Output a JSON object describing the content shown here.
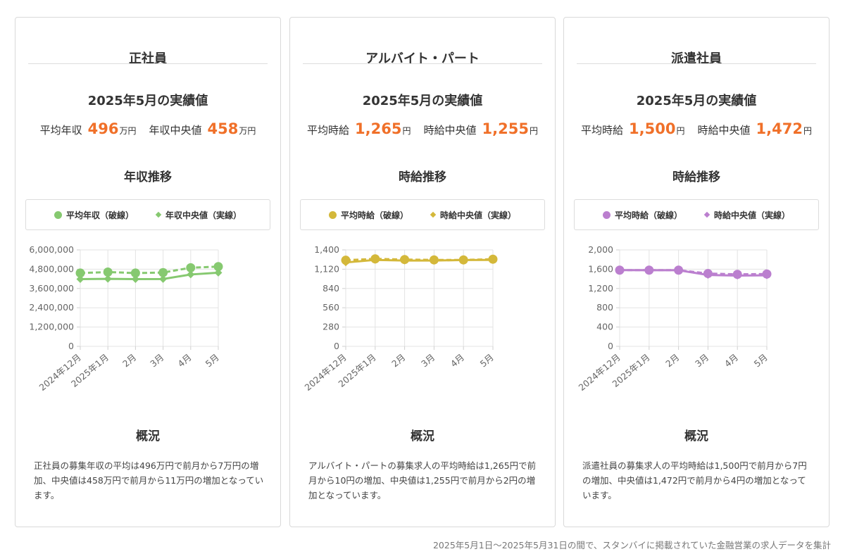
{
  "cards": [
    {
      "title": "正社員",
      "result_title": "2025年5月の実績値",
      "stat1": {
        "label": "平均年収",
        "value": "496",
        "unit": "万円"
      },
      "stat2": {
        "label": "年収中央値",
        "value": "458",
        "unit": "万円"
      },
      "trend_title": "年収推移",
      "legend": [
        "平均年収（破線）",
        "年収中央値（実線）"
      ],
      "overview_title": "概況",
      "overview_text": "正社員の募集年収の平均は496万円で前月から7万円の増加、中央値は458万円で前月から11万円の増加となっています。",
      "color": "#86c970"
    },
    {
      "title": "アルバイト・パート",
      "result_title": "2025年5月の実績値",
      "stat1": {
        "label": "平均時給",
        "value": "1,265",
        "unit": "円"
      },
      "stat2": {
        "label": "時給中央値",
        "value": "1,255",
        "unit": "円"
      },
      "trend_title": "時給推移",
      "legend": [
        "平均時給（破線）",
        "時給中央値（実線）"
      ],
      "overview_title": "概況",
      "overview_text": "アルバイト・パートの募集求人の平均時給は1,265円で前月から10円の増加、中央値は1,255円で前月から2円の増加となっています。",
      "color": "#d4b83a"
    },
    {
      "title": "派遣社員",
      "result_title": "2025年5月の実績値",
      "stat1": {
        "label": "平均時給",
        "value": "1,500",
        "unit": "円"
      },
      "stat2": {
        "label": "時給中央値",
        "value": "1,472",
        "unit": "円"
      },
      "trend_title": "時給推移",
      "legend": [
        "平均時給（破線）",
        "時給中央値（実線）"
      ],
      "overview_title": "概況",
      "overview_text": "派遣社員の募集求人の平均時給は1,500円で前月から7円の増加、中央値は1,472円で前月から4円の増加となっています。",
      "color": "#bb7fcf"
    }
  ],
  "footer": "2025年5月1日〜2025年5月31日の間で、スタンバイに掲載されていた金融営業の求人データを集計",
  "chart_data": [
    {
      "type": "line",
      "categories": [
        "2024年12月",
        "2025年1月",
        "2月",
        "3月",
        "4月",
        "5月"
      ],
      "ylim": [
        0,
        6000000
      ],
      "yticks": [
        "6,000,000",
        "4,800,000",
        "3,600,000",
        "2,400,000",
        "1,200,000",
        "0"
      ],
      "series": [
        {
          "name": "平均年収（破線）",
          "style": "dashed",
          "marker": "circle",
          "values": [
            4560000,
            4620000,
            4560000,
            4590000,
            4890000,
            4960000
          ]
        },
        {
          "name": "年収中央値（実線）",
          "style": "solid",
          "marker": "diamond",
          "values": [
            4180000,
            4200000,
            4180000,
            4190000,
            4470000,
            4580000
          ]
        }
      ]
    },
    {
      "type": "line",
      "categories": [
        "2024年12月",
        "2025年1月",
        "2月",
        "3月",
        "4月",
        "5月"
      ],
      "ylim": [
        0,
        1400
      ],
      "yticks": [
        "1,400",
        "1,120",
        "840",
        "560",
        "280",
        "0"
      ],
      "series": [
        {
          "name": "平均時給（破線）",
          "style": "dashed",
          "marker": "circle",
          "values": [
            1250,
            1270,
            1260,
            1255,
            1255,
            1265
          ]
        },
        {
          "name": "時給中央値（実線）",
          "style": "solid",
          "marker": "diamond",
          "values": [
            1218,
            1255,
            1245,
            1245,
            1253,
            1255
          ]
        }
      ]
    },
    {
      "type": "line",
      "categories": [
        "2024年12月",
        "2025年1月",
        "2月",
        "3月",
        "4月",
        "5月"
      ],
      "ylim": [
        0,
        2000
      ],
      "yticks": [
        "2,000",
        "1,600",
        "1,200",
        "800",
        "400",
        "0"
      ],
      "series": [
        {
          "name": "平均時給（破線）",
          "style": "dashed",
          "marker": "circle",
          "values": [
            1580,
            1580,
            1580,
            1510,
            1493,
            1500
          ]
        },
        {
          "name": "時給中央値（実線）",
          "style": "solid",
          "marker": "diamond",
          "values": [
            1580,
            1578,
            1578,
            1480,
            1468,
            1472
          ]
        }
      ]
    }
  ]
}
